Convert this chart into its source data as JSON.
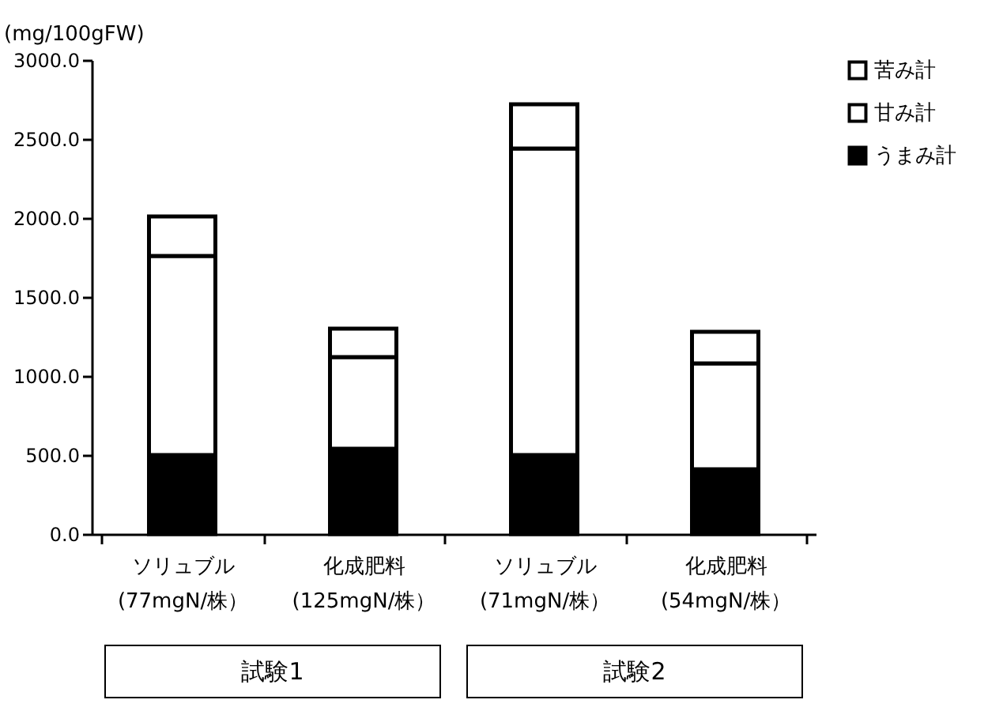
{
  "chart_data": {
    "type": "bar",
    "stacked": true,
    "ylabel": "(mg/100gFW)",
    "categories": [
      "ソリュブル\n(77mgN/株）",
      "化成肥料\n(125mgN/株）",
      "ソリュブル\n(71mgN/株）",
      "化成肥料\n(54mgN/株）"
    ],
    "series": [
      {
        "name": "うまみ計",
        "color": "#000000",
        "values": [
          500,
          540,
          500,
          410
        ]
      },
      {
        "name": "甘み計",
        "color": "#ffffff",
        "values": [
          1260,
          580,
          1940,
          670
        ]
      },
      {
        "name": "苦み計",
        "color": "#ffffff",
        "values": [
          250,
          180,
          280,
          200
        ]
      }
    ],
    "ylim": [
      0,
      3000
    ],
    "yticks": [
      {
        "value": 0,
        "label": "0.0"
      },
      {
        "value": 500,
        "label": "500.0"
      },
      {
        "value": 1000,
        "label": "1000.0"
      },
      {
        "value": 1500,
        "label": "1500.0"
      },
      {
        "value": 2000,
        "label": "2000.0"
      },
      {
        "value": 2500,
        "label": "2500.0"
      },
      {
        "value": 3000,
        "label": "3000.0"
      }
    ],
    "grid": false,
    "legend": "right",
    "annotations": [
      "試験1",
      "試験2"
    ]
  }
}
